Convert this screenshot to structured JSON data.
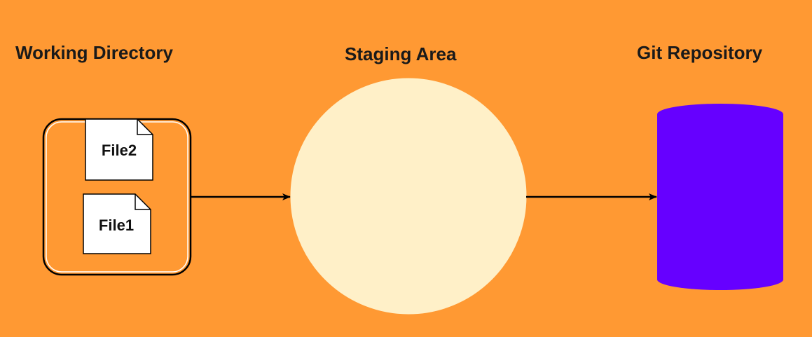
{
  "labels": {
    "working_directory": "Working Directory",
    "staging_area": "Staging Area",
    "git_repository": "Git Repository"
  },
  "files": [
    {
      "name": "File2"
    },
    {
      "name": "File1"
    }
  ],
  "colors": {
    "background": "#FF9933",
    "staging_circle": "#FFF0C8",
    "repository": "#6600FF",
    "file_fill": "#FFFFFF",
    "stroke": "#000000"
  }
}
